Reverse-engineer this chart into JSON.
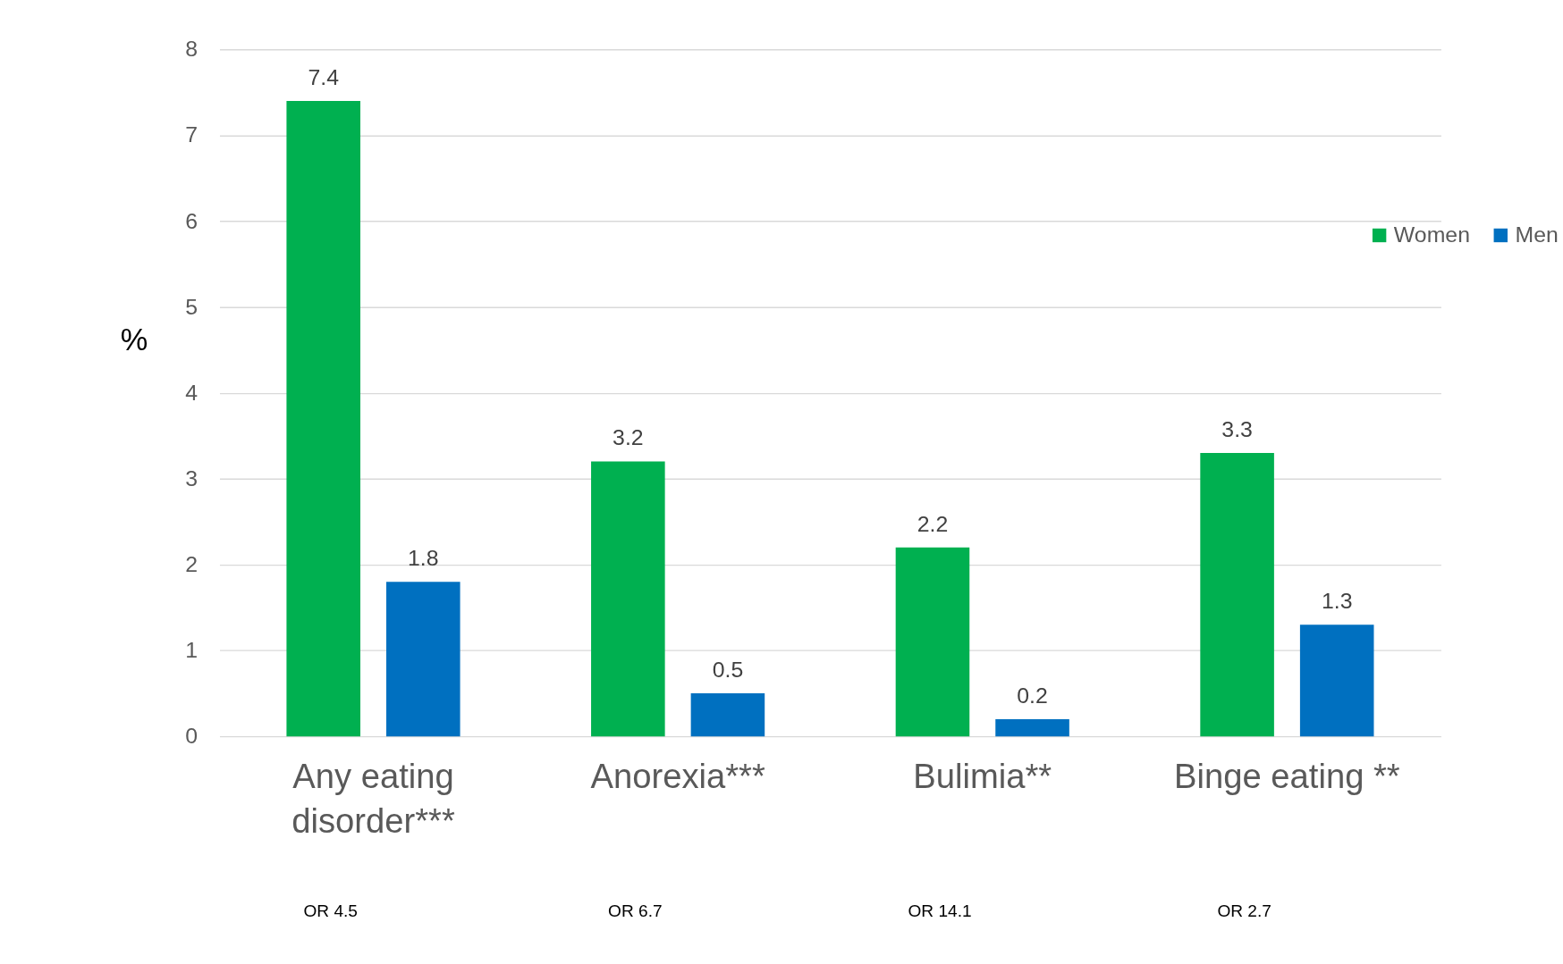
{
  "chart_data": {
    "type": "bar",
    "ylabel": "%",
    "categories": [
      "Any eating disorder***",
      "Anorexia***",
      "Bulimia**",
      "Binge eating **"
    ],
    "series": [
      {
        "name": "Women",
        "color": "#00b050",
        "values": [
          7.4,
          3.2,
          2.2,
          3.3
        ]
      },
      {
        "name": "Men",
        "color": "#0070c0",
        "values": [
          1.8,
          0.5,
          0.2,
          1.3
        ]
      }
    ],
    "ylim": [
      0,
      8
    ],
    "yticks": [
      0,
      1,
      2,
      3,
      4,
      5,
      6,
      7,
      8
    ],
    "grid": "y",
    "legend": "right",
    "data_labels": true,
    "annotations": [
      "OR 4.5",
      "OR 6.7",
      "OR 14.1",
      "OR 2.7"
    ]
  }
}
